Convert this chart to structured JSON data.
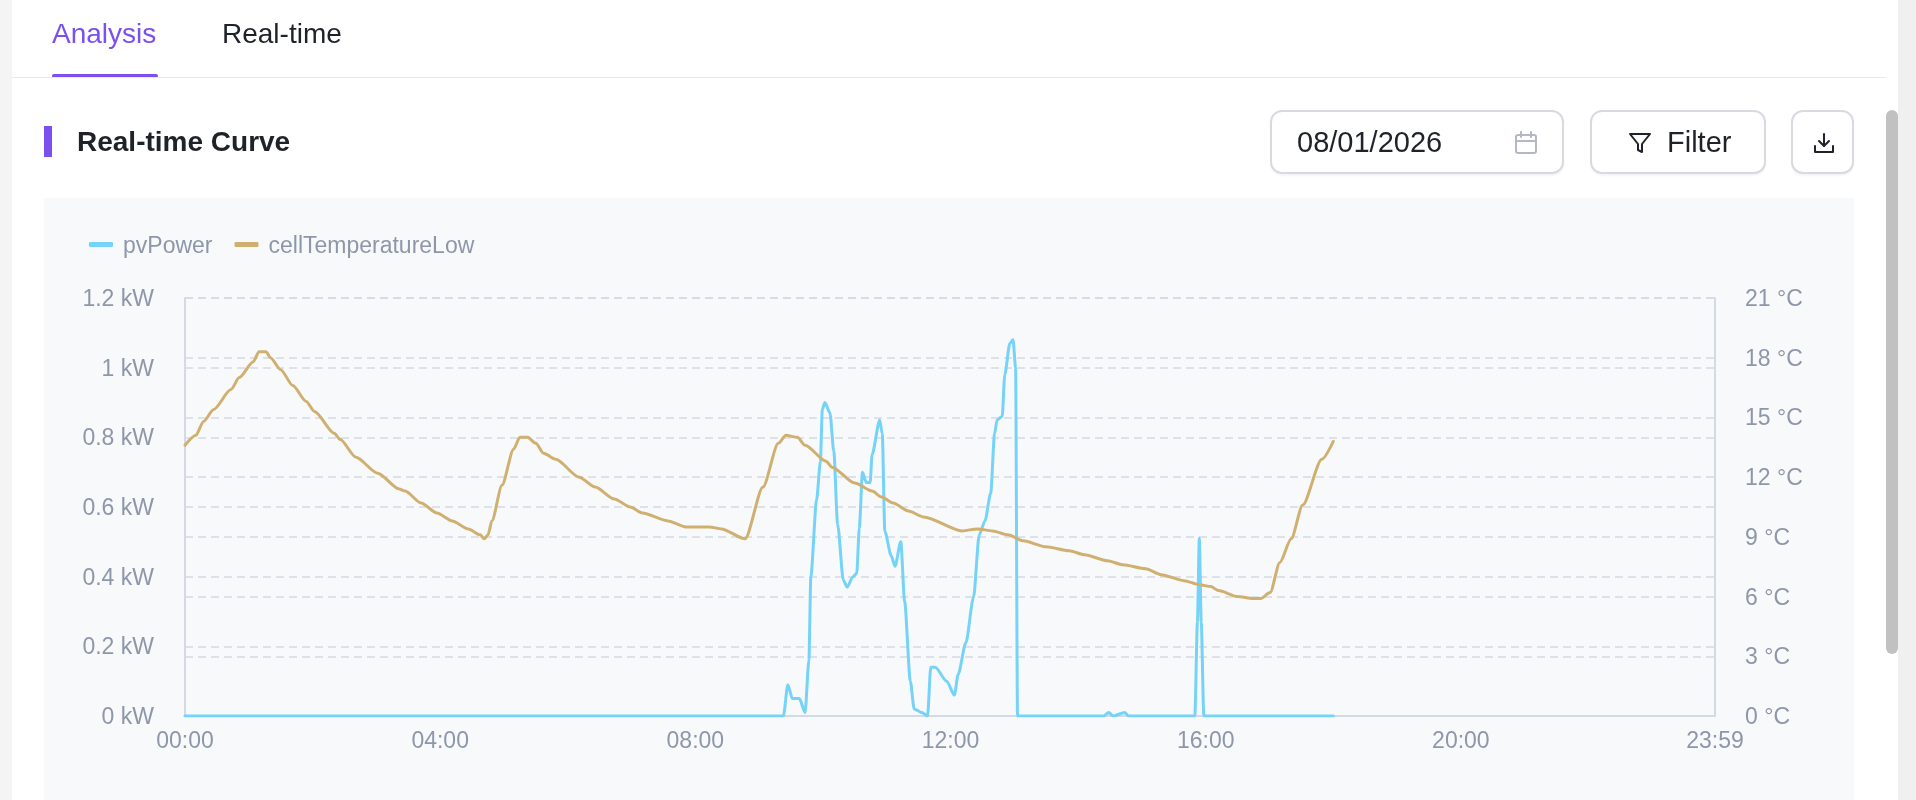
{
  "chart_data": {
    "type": "line",
    "title": "Real-time Curve",
    "annotations": [
      "Analysis",
      "Real-time",
      "08/01/2026",
      "Filter"
    ],
    "xlim": [
      0,
      23.9833
    ],
    "xticks": [
      {
        "value": 0,
        "label": "00:00"
      },
      {
        "value": 4,
        "label": "04:00"
      },
      {
        "value": 8,
        "label": "08:00"
      },
      {
        "value": 12,
        "label": "12:00"
      },
      {
        "value": 16,
        "label": "16:00"
      },
      {
        "value": 20,
        "label": "20:00"
      },
      {
        "value": 23.9833,
        "label": "23:59"
      }
    ],
    "ylim": [
      0,
      1.2
    ],
    "yticks": [
      {
        "value": 0,
        "label": "0 kW"
      },
      {
        "value": 0.2,
        "label": "0.2 kW"
      },
      {
        "value": 0.4,
        "label": "0.4 kW"
      },
      {
        "value": 0.6,
        "label": "0.6 kW"
      },
      {
        "value": 0.8,
        "label": "0.8 kW"
      },
      {
        "value": 1,
        "label": "1 kW"
      },
      {
        "value": 1.2,
        "label": "1.2 kW"
      }
    ],
    "y2lim": [
      0,
      21
    ],
    "y2ticks": [
      {
        "value": 0,
        "label": "0 °C"
      },
      {
        "value": 3,
        "label": "3 °C"
      },
      {
        "value": 6,
        "label": "6 °C"
      },
      {
        "value": 9,
        "label": "9 °C"
      },
      {
        "value": 12,
        "label": "12 °C"
      },
      {
        "value": 15,
        "label": "15 °C"
      },
      {
        "value": 18,
        "label": "18 °C"
      },
      {
        "value": 21,
        "label": "21 °C"
      }
    ],
    "grid": "y",
    "legend": "top left",
    "series": [
      {
        "name": "pvPower",
        "color": "#74d3f7",
        "axis": "y",
        "x": [
          0,
          9.38,
          9.45,
          9.52,
          9.63,
          9.72,
          9.78,
          9.81,
          9.9,
          9.96,
          9.99,
          10.03,
          10.11,
          10.17,
          10.23,
          10.32,
          10.38,
          10.47,
          10.53,
          10.57,
          10.62,
          10.68,
          10.74,
          10.77,
          10.89,
          10.93,
          10.97,
          11.07,
          11.13,
          11.22,
          11.28,
          11.37,
          11.43,
          11.55,
          11.64,
          11.69,
          11.76,
          11.94,
          12.06,
          12.12,
          12.24,
          12.36,
          12.45,
          12.54,
          12.63,
          12.69,
          12.73,
          12.81,
          12.85,
          12.93,
          12.98,
          13.02,
          13.05,
          14.4,
          14.48,
          14.55,
          14.73,
          14.79,
          15.83,
          15.87,
          15.9,
          15.93,
          15.97,
          18
        ],
        "values": [
          0,
          0,
          0.09,
          0.05,
          0.05,
          0.01,
          0.16,
          0.4,
          0.62,
          0.73,
          0.88,
          0.9,
          0.87,
          0.76,
          0.55,
          0.39,
          0.37,
          0.4,
          0.41,
          0.54,
          0.7,
          0.67,
          0.67,
          0.75,
          0.85,
          0.81,
          0.53,
          0.46,
          0.43,
          0.5,
          0.33,
          0.1,
          0.02,
          0.01,
          0,
          0.14,
          0.14,
          0.1,
          0.06,
          0.12,
          0.21,
          0.34,
          0.52,
          0.56,
          0.64,
          0.81,
          0.85,
          0.86,
          0.98,
          1.07,
          1.08,
          1,
          0,
          0,
          0.01,
          0,
          0.01,
          0,
          0,
          0.27,
          0.51,
          0.27,
          0,
          0
        ]
      },
      {
        "name": "cellTemperatureLow",
        "color": "#cfb070",
        "axis": "y2",
        "x": [
          0,
          0.17,
          0.29,
          0.45,
          0.72,
          0.85,
          1.07,
          1.16,
          1.27,
          1.34,
          1.5,
          1.69,
          1.9,
          2.03,
          2.34,
          2.43,
          2.68,
          3.02,
          3.36,
          3.45,
          3.7,
          3.95,
          4.19,
          4.44,
          4.63,
          4.69,
          4.75,
          4.81,
          4.97,
          5.15,
          5.25,
          5.37,
          5.5,
          5.62,
          5.81,
          6.18,
          6.43,
          6.73,
          6.98,
          7.17,
          7.57,
          7.85,
          8.22,
          8.41,
          8.78,
          9.06,
          9.3,
          9.42,
          9.6,
          9.72,
          10.05,
          10.14,
          10.5,
          10.77,
          10.92,
          11.1,
          11.34,
          11.58,
          12.18,
          12.42,
          12.66,
          12.9,
          13.14,
          13.5,
          13.86,
          14.1,
          14.46,
          14.7,
          15.06,
          15.3,
          15.66,
          15.9,
          16.08,
          16.2,
          16.5,
          16.74,
          16.86,
          17.01,
          17.16,
          17.34,
          17.52,
          17.82,
          18
        ],
        "values": [
          13.6,
          14.1,
          14.8,
          15.4,
          16.4,
          17,
          17.8,
          18.3,
          18.3,
          18,
          17.4,
          16.6,
          15.8,
          15.3,
          14.2,
          13.9,
          13,
          12.2,
          11.4,
          11.3,
          10.7,
          10.2,
          9.8,
          9.4,
          9.1,
          8.9,
          9.1,
          9.8,
          11.6,
          13.4,
          14,
          14,
          13.7,
          13.2,
          12.9,
          12,
          11.5,
          10.9,
          10.5,
          10.2,
          9.8,
          9.5,
          9.5,
          9.4,
          8.9,
          11.5,
          13.7,
          14.1,
          14,
          13.6,
          12.8,
          12.5,
          11.7,
          11.3,
          11,
          10.7,
          10.3,
          10,
          9.3,
          9.4,
          9.3,
          9.1,
          8.8,
          8.5,
          8.3,
          8.1,
          7.8,
          7.6,
          7.4,
          7.1,
          6.8,
          6.6,
          6.5,
          6.3,
          6,
          5.9,
          5.9,
          6.2,
          7.7,
          8.9,
          10.6,
          12.9,
          13.8
        ]
      }
    ]
  }
}
